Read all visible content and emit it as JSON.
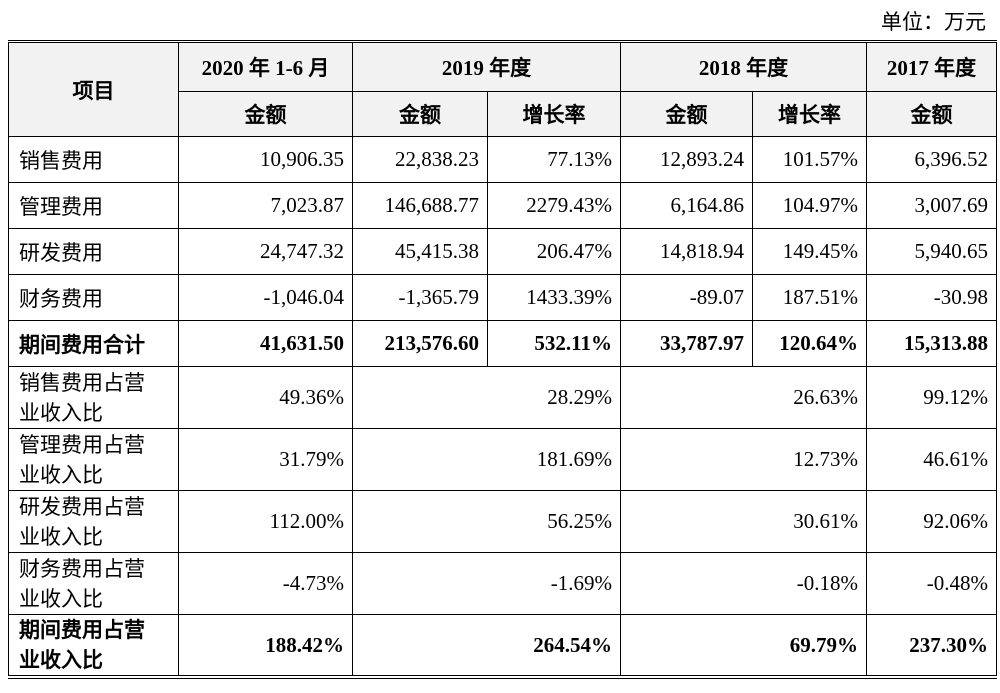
{
  "unit": "单位：万元",
  "table": {
    "header": {
      "item": "项目",
      "periods": [
        "2020 年 1-6 月",
        "2019 年度",
        "2018 年度",
        "2017 年度"
      ],
      "subheaders": [
        "金额",
        "金额",
        "增长率",
        "金额",
        "增长率",
        "金额"
      ]
    },
    "rows": [
      [
        "销售费用",
        "10,906.35",
        "22,838.23",
        "77.13%",
        "12,893.24",
        "101.57%",
        "6,396.52"
      ],
      [
        "管理费用",
        "7,023.87",
        "146,688.77",
        "2279.43%",
        "6,164.86",
        "104.97%",
        "3,007.69"
      ],
      [
        "研发费用",
        "24,747.32",
        "45,415.38",
        "206.47%",
        "14,818.94",
        "149.45%",
        "5,940.65"
      ],
      [
        "财务费用",
        "-1,046.04",
        "-1,365.79",
        "1433.39%",
        "-89.07",
        "187.51%",
        "-30.98"
      ],
      [
        "期间费用合计",
        "41,631.50",
        "213,576.60",
        "532.11%",
        "33,787.97",
        "120.64%",
        "15,313.88"
      ]
    ],
    "ratio_rows": [
      [
        "销售费用占营业收入比",
        "49.36%",
        "28.29%",
        "26.63%",
        "99.12%"
      ],
      [
        "管理费用占营业收入比",
        "31.79%",
        "181.69%",
        "12.73%",
        "46.61%"
      ],
      [
        "研发费用占营业收入比",
        "112.00%",
        "56.25%",
        "30.61%",
        "92.06%"
      ],
      [
        "财务费用占营业收入比",
        "-4.73%",
        "-1.69%",
        "-0.18%",
        "-0.48%"
      ],
      [
        "期间费用占营业收入比",
        "188.42%",
        "264.54%",
        "69.79%",
        "237.30%"
      ]
    ]
  }
}
